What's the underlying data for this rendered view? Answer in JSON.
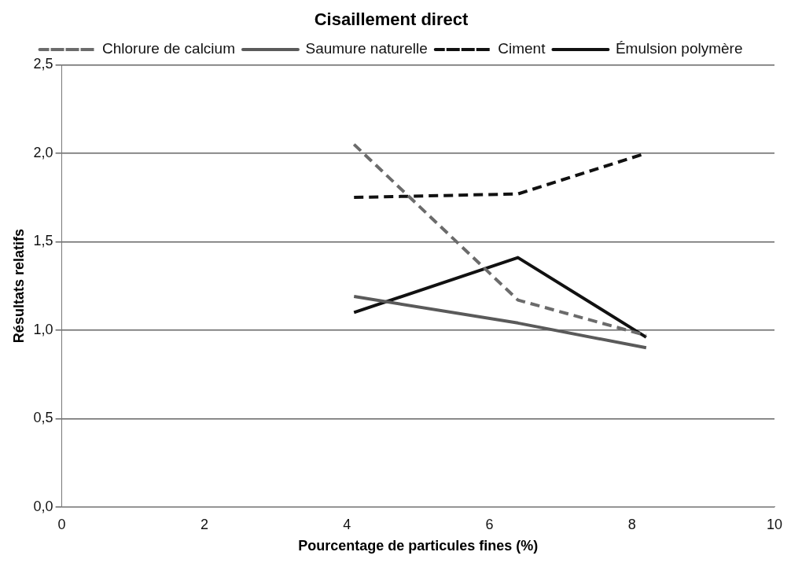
{
  "chart_data": {
    "type": "line",
    "title": "Cisaillement direct",
    "xlabel": "Pourcentage de particules fines (%)",
    "ylabel": "Résultats relatifs",
    "x": [
      4.1,
      6.4,
      8.2
    ],
    "series": [
      {
        "name": "Chlorure de calcium",
        "color": "#6b6b6b",
        "line_style": "dashed",
        "values": [
          2.05,
          1.17,
          0.97
        ]
      },
      {
        "name": "Saumure naturelle",
        "color": "#5a5a5a",
        "line_style": "solid",
        "values": [
          1.19,
          1.04,
          0.9
        ]
      },
      {
        "name": "Ciment",
        "color": "#111111",
        "line_style": "dashed",
        "values": [
          1.75,
          1.77,
          2.0
        ]
      },
      {
        "name": "Émulsion polymère",
        "color": "#111111",
        "line_style": "solid",
        "values": [
          1.1,
          1.41,
          0.96
        ]
      }
    ],
    "xlim": [
      0,
      10
    ],
    "xticks": [
      0,
      2,
      4,
      6,
      8,
      10
    ],
    "ylim": [
      0,
      2.5
    ],
    "yticks": [
      {
        "value": 0,
        "label": "0,0"
      },
      {
        "value": 0.5,
        "label": "0,5"
      },
      {
        "value": 1,
        "label": "1,0"
      },
      {
        "value": 1.5,
        "label": "1,5"
      },
      {
        "value": 2,
        "label": "2,0"
      },
      {
        "value": 2.5,
        "label": "2,5"
      }
    ],
    "grid": "y",
    "legend": "top",
    "marker": "none"
  }
}
